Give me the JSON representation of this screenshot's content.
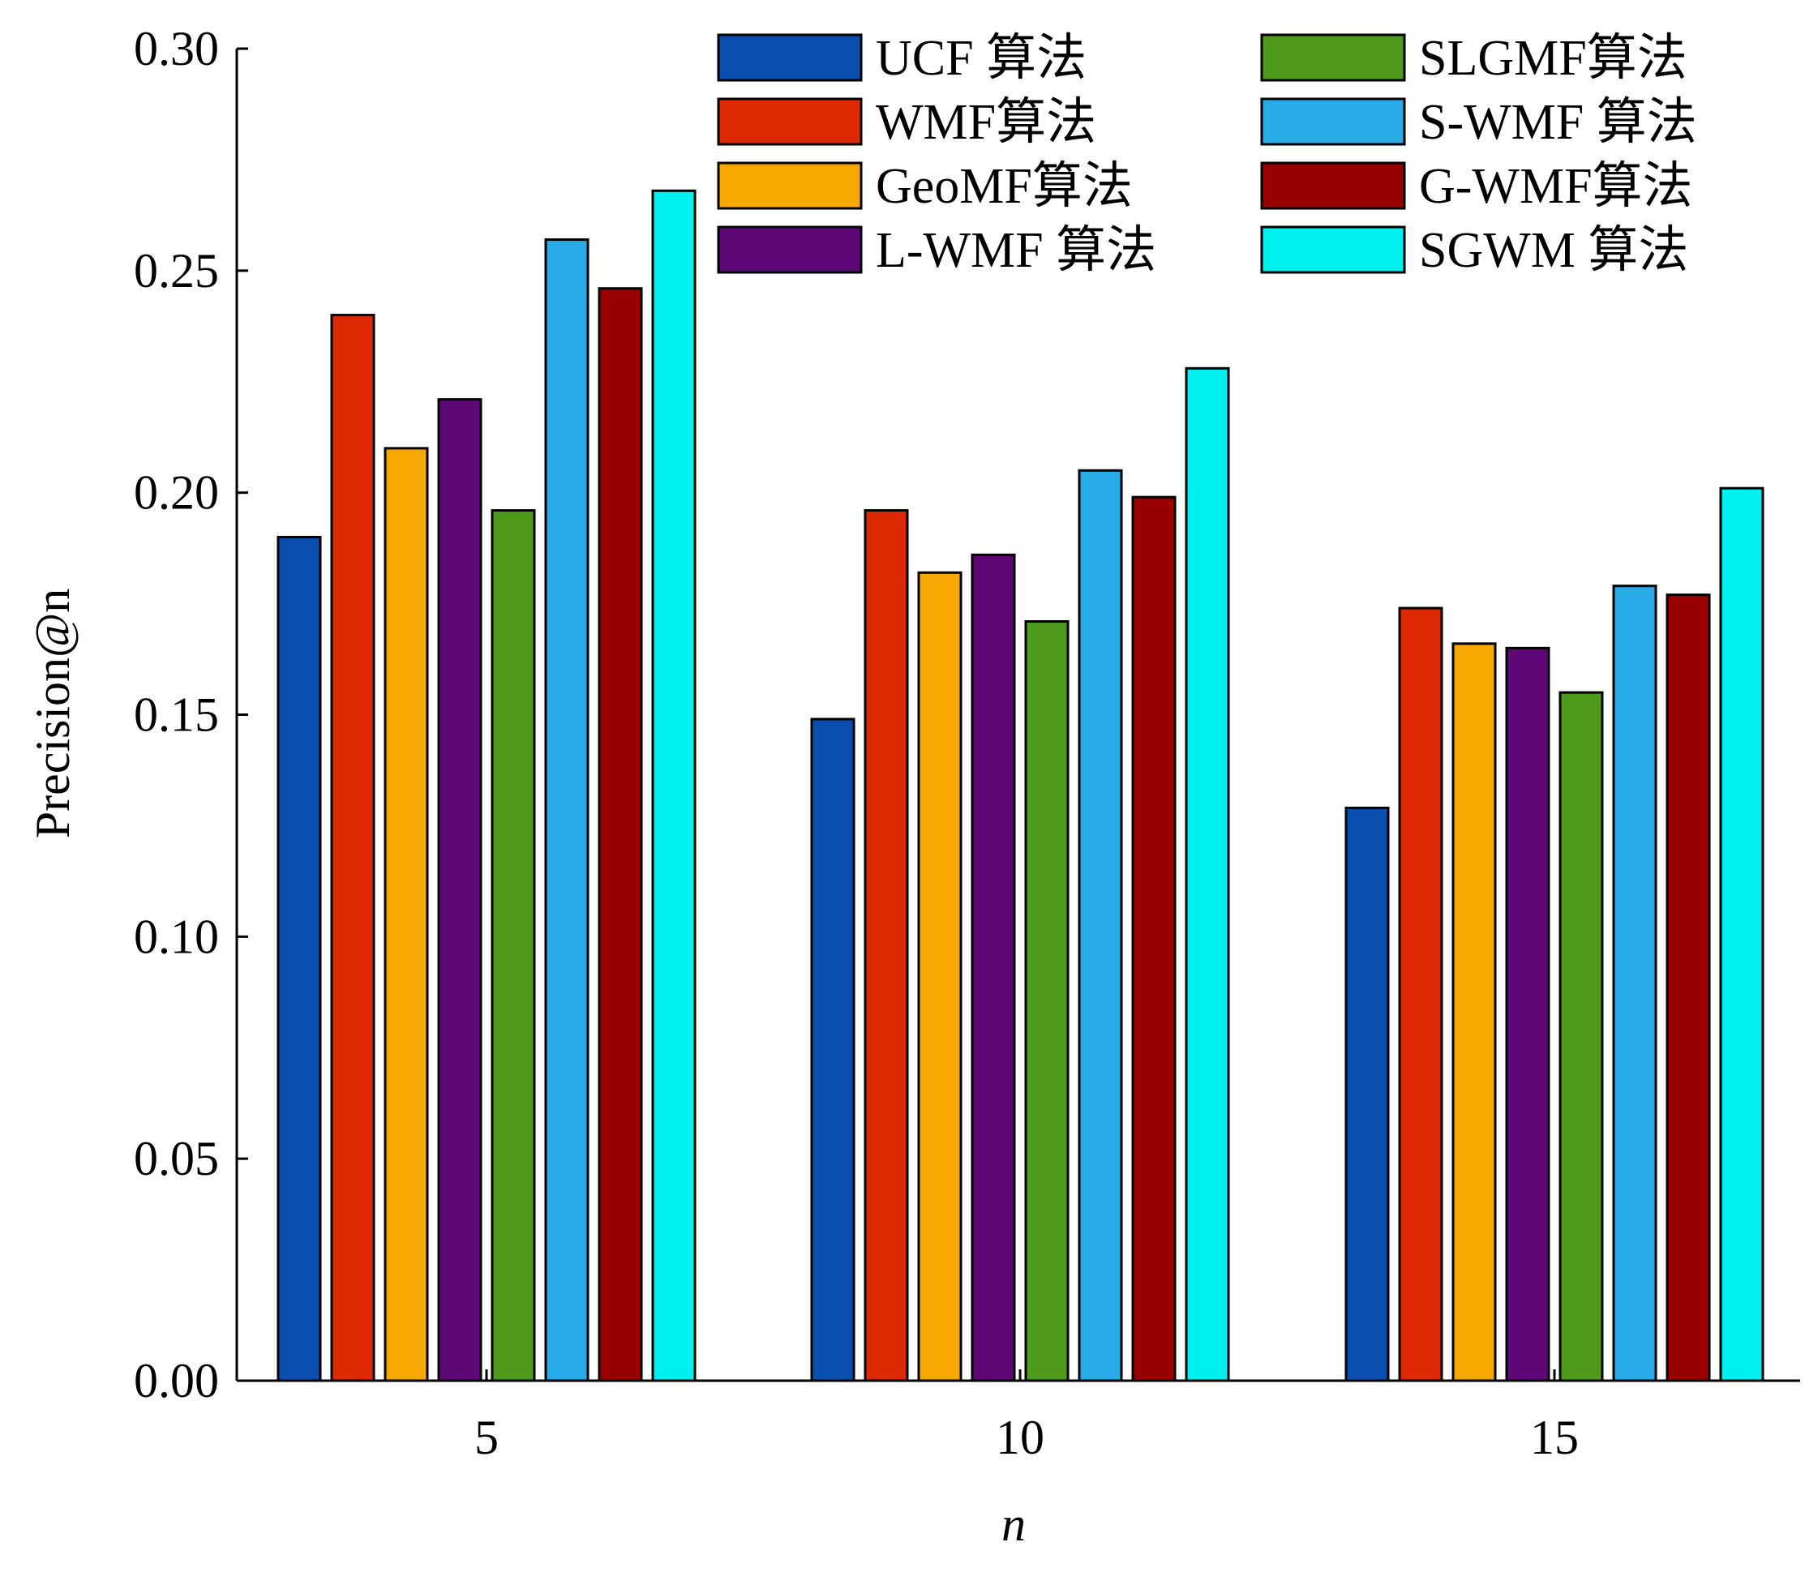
{
  "chart_data": {
    "type": "bar",
    "xlabel": "n",
    "ylabel": "Precision@n",
    "ylim": [
      0,
      0.3
    ],
    "yticks": [
      "0.00",
      "0.05",
      "0.10",
      "0.15",
      "0.20",
      "0.25",
      "0.30"
    ],
    "categories": [
      "5",
      "10",
      "15"
    ],
    "legend_position": "top-right",
    "grid": false,
    "series": [
      {
        "name": "UCF 算法",
        "color": "#0a4fb0",
        "values": [
          0.19,
          0.149,
          0.129
        ]
      },
      {
        "name": "WMF算法",
        "color": "#dd2a05",
        "values": [
          0.24,
          0.196,
          0.174
        ]
      },
      {
        "name": "GeoMF算法",
        "color": "#f7a800",
        "values": [
          0.21,
          0.182,
          0.166
        ]
      },
      {
        "name": "L-WMF 算法",
        "color": "#5e0776",
        "values": [
          0.221,
          0.186,
          0.165
        ]
      },
      {
        "name": "SLGMF算法",
        "color": "#4e9a1c",
        "values": [
          0.196,
          0.171,
          0.155
        ]
      },
      {
        "name": "S-WMF 算法",
        "color": "#29abe8",
        "values": [
          0.257,
          0.205,
          0.179
        ]
      },
      {
        "name": "G-WMF算法",
        "color": "#990000",
        "values": [
          0.246,
          0.199,
          0.177
        ]
      },
      {
        "name": "SGWM 算法",
        "color": "#00f0f0",
        "values": [
          0.268,
          0.228,
          0.201
        ]
      }
    ]
  }
}
